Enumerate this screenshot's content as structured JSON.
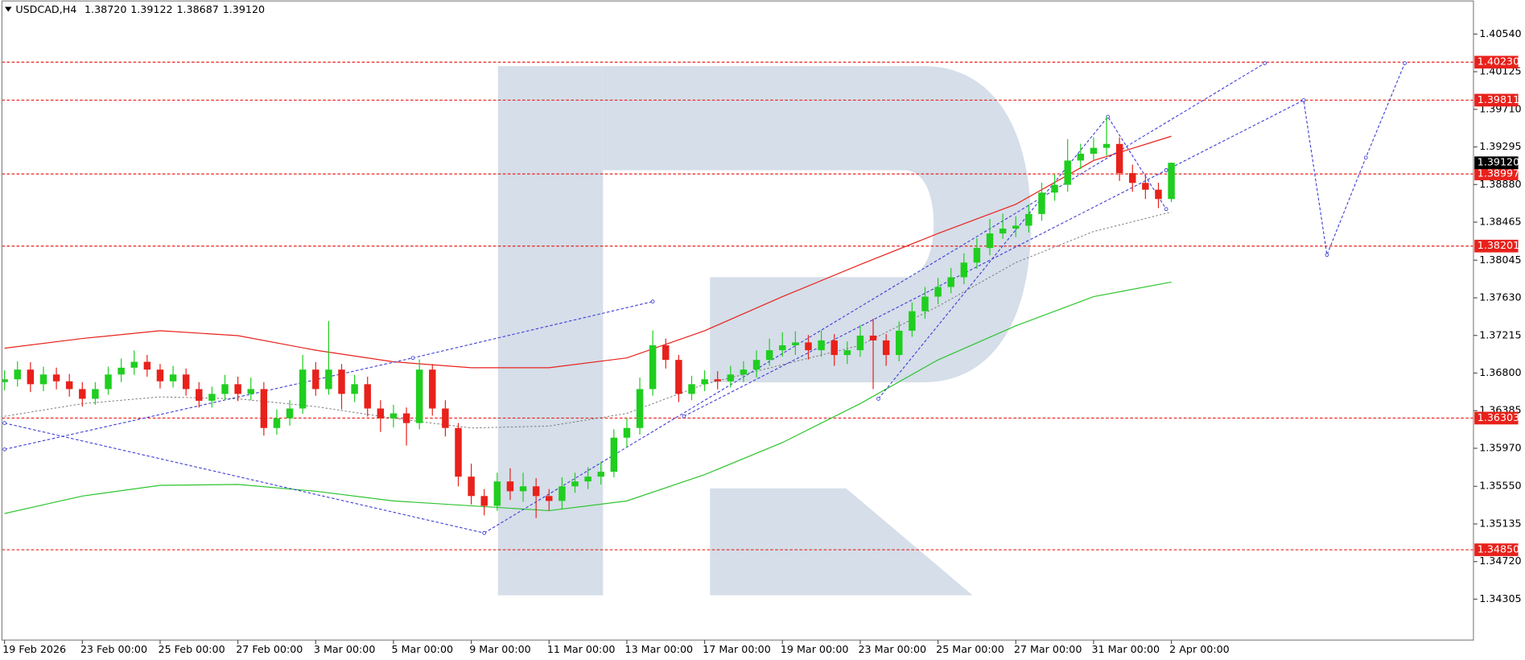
{
  "chart_data": {
    "type": "candlestick",
    "title": "USDCAD,H4",
    "header_values": [
      "1.38720",
      "1.39122",
      "1.38687",
      "1.39120"
    ],
    "up_color": "#1fce1f",
    "down_color": "#e8211b",
    "x": [
      0,
      1,
      2,
      3,
      4,
      5,
      6,
      7,
      8,
      9,
      10,
      11,
      12,
      13,
      14,
      15,
      16,
      17,
      18,
      19,
      20,
      21,
      22,
      23,
      24,
      25,
      26,
      27,
      28,
      29,
      30,
      31,
      32,
      33,
      34,
      35,
      36,
      37,
      38,
      39,
      40,
      41,
      42,
      43,
      44,
      45,
      46,
      47,
      48,
      49,
      50,
      51,
      52,
      53,
      54,
      55,
      56,
      57,
      58,
      59,
      60,
      61,
      62,
      63,
      64,
      65,
      66,
      67,
      68,
      69,
      70,
      71,
      72,
      73,
      74,
      75,
      76,
      77,
      78,
      79,
      80,
      81,
      82,
      83,
      84,
      85,
      86,
      87,
      88,
      89,
      90
    ],
    "open": [
      1.367,
      1.36731,
      1.36838,
      1.36677,
      1.36784,
      1.36709,
      1.36623,
      1.36516,
      1.36623,
      1.36784,
      1.36859,
      1.36924,
      1.36838,
      1.36709,
      1.36784,
      1.36623,
      1.36494,
      1.3657,
      1.36677,
      1.3657,
      1.36623,
      1.36194,
      1.36301,
      1.36409,
      1.36838,
      1.36623,
      1.36838,
      1.3657,
      1.36677,
      1.36409,
      1.36301,
      1.36355,
      1.36248,
      1.36838,
      1.36409,
      1.36194,
      1.35657,
      1.35443,
      1.35335,
      1.35604,
      1.35496,
      1.3555,
      1.35443,
      1.35389,
      1.3555,
      1.35604,
      1.35657,
      1.35711,
      1.36087,
      1.36194,
      1.36623,
      1.37106,
      1.36945,
      1.3657,
      1.36677,
      1.36731,
      1.36709,
      1.36784,
      1.36838,
      1.36945,
      1.37052,
      1.37106,
      1.37138,
      1.37052,
      1.3716,
      1.36999,
      1.37052,
      1.37213,
      1.3716,
      1.36999,
      1.37267,
      1.37482,
      1.37643,
      1.3775,
      1.37857,
      1.38019,
      1.3818,
      1.3834,
      1.38394,
      1.38426,
      1.38555,
      1.38791,
      1.38877,
      1.39145,
      1.3922,
      1.39285,
      1.39328,
      1.39006,
      1.38898,
      1.38823,
      1.3872
    ],
    "high": [
      1.3683,
      1.3693,
      1.3692,
      1.3687,
      1.3686,
      1.3679,
      1.367,
      1.367,
      1.3687,
      1.3696,
      1.3705,
      1.37,
      1.369,
      1.3688,
      1.3685,
      1.367,
      1.3665,
      1.3678,
      1.3676,
      1.3675,
      1.367,
      1.364,
      1.365,
      1.37,
      1.3692,
      1.37374,
      1.369,
      1.3678,
      1.3676,
      1.365,
      1.3645,
      1.3642,
      1.3695,
      1.369,
      1.365,
      1.3625,
      1.358,
      1.3552,
      1.357,
      1.3575,
      1.357,
      1.3564,
      1.3552,
      1.3565,
      1.357,
      1.3576,
      1.3582,
      1.3618,
      1.363,
      1.3675,
      1.3727,
      1.3718,
      1.37,
      1.3677,
      1.3683,
      1.3682,
      1.3688,
      1.3693,
      1.3705,
      1.3718,
      1.3725,
      1.3726,
      1.3722,
      1.3727,
      1.3723,
      1.3715,
      1.3733,
      1.374,
      1.3723,
      1.3737,
      1.3758,
      1.3775,
      1.3785,
      1.3796,
      1.3812,
      1.3829,
      1.385,
      1.3856,
      1.3853,
      1.3866,
      1.389,
      1.3899,
      1.3938,
      1.3933,
      1.394,
      1.3963,
      1.394,
      1.391,
      1.3899,
      1.389,
      1.39122
    ],
    "low": [
      1.3661,
      1.3665,
      1.3659,
      1.366,
      1.3662,
      1.3654,
      1.3643,
      1.3645,
      1.3656,
      1.367,
      1.3678,
      1.3676,
      1.3663,
      1.3664,
      1.3655,
      1.3642,
      1.3642,
      1.365,
      1.3649,
      1.365,
      1.3611,
      1.3612,
      1.3622,
      1.3635,
      1.3655,
      1.3656,
      1.364,
      1.3648,
      1.3632,
      1.3615,
      1.362,
      1.36,
      1.3618,
      1.3633,
      1.361,
      1.3555,
      1.3535,
      1.3523,
      1.3528,
      1.354,
      1.3538,
      1.352,
      1.3528,
      1.353,
      1.3548,
      1.3552,
      1.3557,
      1.3565,
      1.3598,
      1.3612,
      1.3655,
      1.3685,
      1.3648,
      1.365,
      1.366,
      1.3662,
      1.3664,
      1.367,
      1.3675,
      1.3688,
      1.3698,
      1.37,
      1.3695,
      1.3698,
      1.3688,
      1.369,
      1.3698,
      1.36623,
      1.3688,
      1.3693,
      1.372,
      1.374,
      1.3756,
      1.3768,
      1.3778,
      1.3795,
      1.381,
      1.3828,
      1.383,
      1.3835,
      1.3848,
      1.387,
      1.388,
      1.3905,
      1.3915,
      1.392,
      1.3892,
      1.388,
      1.3872,
      1.3862,
      1.38687
    ],
    "close": [
      1.36731,
      1.36838,
      1.36677,
      1.36784,
      1.36709,
      1.36623,
      1.36516,
      1.36623,
      1.36784,
      1.36859,
      1.36924,
      1.36838,
      1.36709,
      1.36784,
      1.36623,
      1.36494,
      1.3657,
      1.36677,
      1.3657,
      1.36623,
      1.36194,
      1.36301,
      1.36409,
      1.36838,
      1.36623,
      1.36838,
      1.3657,
      1.36677,
      1.36409,
      1.36301,
      1.36355,
      1.36248,
      1.36838,
      1.36409,
      1.36194,
      1.35657,
      1.35443,
      1.35335,
      1.35604,
      1.35496,
      1.3555,
      1.35443,
      1.35389,
      1.3555,
      1.35604,
      1.35657,
      1.35711,
      1.36087,
      1.36194,
      1.36623,
      1.37106,
      1.36945,
      1.3657,
      1.36677,
      1.36731,
      1.36709,
      1.36784,
      1.36838,
      1.36945,
      1.37052,
      1.37106,
      1.37138,
      1.37052,
      1.3716,
      1.36999,
      1.37052,
      1.37213,
      1.3716,
      1.36999,
      1.37267,
      1.37482,
      1.37643,
      1.3775,
      1.37857,
      1.38019,
      1.3818,
      1.3834,
      1.38394,
      1.38426,
      1.38555,
      1.38791,
      1.38877,
      1.39145,
      1.3922,
      1.39285,
      1.39328,
      1.39006,
      1.38898,
      1.38823,
      1.3872,
      1.3912
    ],
    "moving_averages": [
      {
        "color": "#e8211b",
        "dash": "solid",
        "x": [
          0,
          6,
          12,
          18,
          24,
          30,
          36,
          42,
          48,
          54,
          60,
          66,
          72,
          78,
          84,
          90
        ],
        "values": [
          1.37074,
          1.37181,
          1.37267,
          1.37213,
          1.37052,
          1.36924,
          1.36859,
          1.36859,
          1.36967,
          1.37267,
          1.37643,
          1.37997,
          1.3834,
          1.38662,
          1.39145,
          1.39413
        ]
      },
      {
        "color": "#2ec42e",
        "dash": "solid",
        "x": [
          0,
          6,
          12,
          18,
          24,
          30,
          36,
          42,
          48,
          54,
          60,
          66,
          72,
          78,
          84,
          90
        ],
        "values": [
          1.3525,
          1.35443,
          1.35561,
          1.35571,
          1.35496,
          1.35389,
          1.35335,
          1.35282,
          1.35389,
          1.35679,
          1.36033,
          1.36463,
          1.36945,
          1.37321,
          1.37643,
          1.37804
        ]
      },
      {
        "color": "#777777",
        "dash": "dotted",
        "x": [
          0,
          6,
          12,
          18,
          24,
          30,
          36,
          42,
          48,
          54,
          60,
          66,
          72,
          78,
          84,
          90
        ],
        "values": [
          1.36323,
          1.36462,
          1.36537,
          1.36516,
          1.3643,
          1.36301,
          1.36194,
          1.36215,
          1.36355,
          1.36677,
          1.36892,
          1.37106,
          1.37536,
          1.38019,
          1.38362,
          1.38577
        ]
      }
    ],
    "drawings": [
      {
        "x": [
          89.6,
          100.2,
          102,
          105,
          108
        ],
        "values": [
          1.39038,
          1.39811,
          1.38104,
          1.39177,
          1.40218
        ]
      },
      {
        "x": [
          37,
          97.2
        ],
        "values": [
          1.35035,
          1.40218
        ]
      },
      {
        "x": [
          0,
          31.5,
          50
        ],
        "values": [
          1.35958,
          1.36967,
          1.37589
        ]
      },
      {
        "x": [
          0,
          37
        ],
        "values": [
          1.36248,
          1.35035
        ]
      },
      {
        "x": [
          52.4,
          89.6
        ],
        "values": [
          1.36323,
          1.39038
        ]
      },
      {
        "x": [
          67.4,
          85.1,
          89.6
        ],
        "values": [
          1.36516,
          1.39628,
          1.38609
        ]
      }
    ],
    "drawing_color": "#3b3bd6",
    "levels": [
      {
        "value": 1.4023,
        "label": "1.40230"
      },
      {
        "value": 1.39811,
        "label": "1.39811"
      },
      {
        "value": 1.38997,
        "label": "1.38997"
      },
      {
        "value": 1.38201,
        "label": "1.38201"
      },
      {
        "value": 1.36303,
        "label": "1.36303"
      },
      {
        "value": 1.3485,
        "label": "1.34850"
      }
    ],
    "level_color": "#e8211b",
    "last_price": {
      "value": 1.3912,
      "label": "1.39120"
    },
    "xlim": [
      -0.2,
      113.3
    ],
    "ylim": [
      1.33854,
      1.40916
    ],
    "xticks": [
      {
        "value": 0,
        "label": "19 Feb 2026"
      },
      {
        "value": 6,
        "label": "23 Feb 00:00"
      },
      {
        "value": 12,
        "label": "25 Feb 00:00"
      },
      {
        "value": 18,
        "label": "27 Feb 00:00"
      },
      {
        "value": 24,
        "label": "3 Mar 00:00"
      },
      {
        "value": 30,
        "label": "5 Mar 00:00"
      },
      {
        "value": 36,
        "label": "9 Mar 00:00"
      },
      {
        "value": 42,
        "label": "11 Mar 00:00"
      },
      {
        "value": 48,
        "label": "13 Mar 00:00"
      },
      {
        "value": 54,
        "label": "17 Mar 00:00"
      },
      {
        "value": 60,
        "label": "19 Mar 00:00"
      },
      {
        "value": 66,
        "label": "23 Mar 00:00"
      },
      {
        "value": 72,
        "label": "25 Mar 00:00"
      },
      {
        "value": 78,
        "label": "27 Mar 00:00"
      },
      {
        "value": 84,
        "label": "31 Mar 00:00"
      },
      {
        "value": 90,
        "label": "2 Apr 00:00"
      }
    ],
    "yticks": [
      {
        "value": 1.4054,
        "label": "1.40540"
      },
      {
        "value": 1.40125,
        "label": "1.40125"
      },
      {
        "value": 1.3971,
        "label": "1.39710"
      },
      {
        "value": 1.39295,
        "label": "1.39295"
      },
      {
        "value": 1.3888,
        "label": "1.38880"
      },
      {
        "value": 1.38465,
        "label": "1.38465"
      },
      {
        "value": 1.38045,
        "label": "1.38045"
      },
      {
        "value": 1.3763,
        "label": "1.37630"
      },
      {
        "value": 1.37215,
        "label": "1.37215"
      },
      {
        "value": 1.368,
        "label": "1.36800"
      },
      {
        "value": 1.36385,
        "label": "1.36385"
      },
      {
        "value": 1.3597,
        "label": "1.35970"
      },
      {
        "value": 1.3555,
        "label": "1.35550"
      },
      {
        "value": 1.35135,
        "label": "1.35135"
      },
      {
        "value": 1.3472,
        "label": "1.34720"
      },
      {
        "value": 1.34305,
        "label": "1.34305"
      }
    ]
  }
}
